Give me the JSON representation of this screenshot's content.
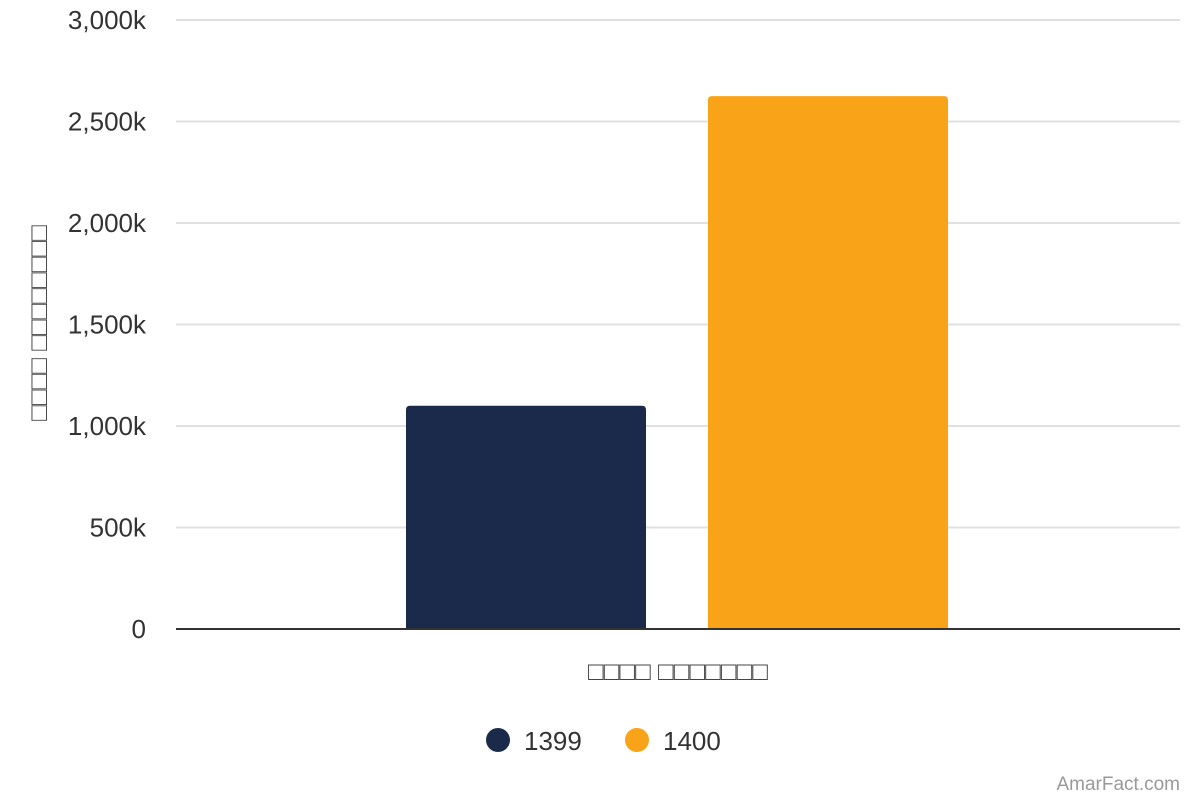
{
  "chart_data": {
    "type": "bar",
    "categories": [
      "□□□□ □□□□□□□"
    ],
    "series": [
      {
        "name": "1399",
        "values": [
          1100000
        ],
        "color": "#1b2a4a"
      },
      {
        "name": "1400",
        "values": [
          2625000
        ],
        "color": "#f9a318"
      }
    ],
    "xlabel": "□□□□ □□□□□□□",
    "ylabel": "□□□□ □□□□□□□□",
    "ylim": [
      0,
      3000000
    ],
    "yticks": [
      {
        "value": 0,
        "label": "0"
      },
      {
        "value": 500000,
        "label": "500k"
      },
      {
        "value": 1000000,
        "label": "1,000k"
      },
      {
        "value": 1500000,
        "label": "1,500k"
      },
      {
        "value": 2000000,
        "label": "2,000k"
      },
      {
        "value": 2500000,
        "label": "2,500k"
      },
      {
        "value": 3000000,
        "label": "3,000k"
      }
    ],
    "grid": true,
    "legend_position": "bottom-center"
  },
  "watermark": "AmarFact.com"
}
